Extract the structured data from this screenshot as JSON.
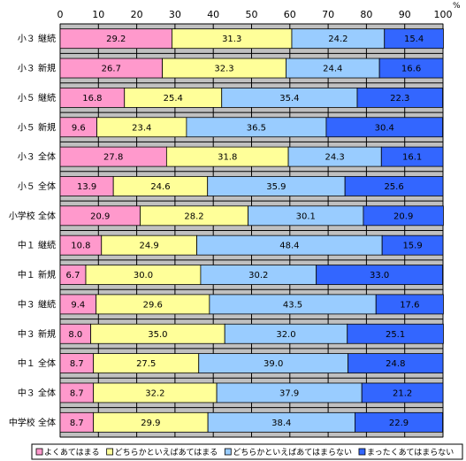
{
  "chart_data": {
    "type": "bar",
    "orientation": "horizontal",
    "stacked": true,
    "percent_symbol": "%",
    "xlim": [
      0,
      100
    ],
    "x_ticks": [
      0,
      10,
      20,
      30,
      40,
      50,
      60,
      70,
      80,
      90,
      100
    ],
    "grid": true,
    "legend_position": "bottom",
    "background_color": "#C0C0C0",
    "categories": [
      "小３ 継続",
      "小３ 新規",
      "小５ 継続",
      "小５ 新規",
      "小３ 全体",
      "小５ 全体",
      "小学校 全体",
      "中１ 継続",
      "中１ 新規",
      "中３ 継続",
      "中３ 新規",
      "中１ 全体",
      "中３ 全体",
      "中学校 全体"
    ],
    "series": [
      {
        "name": "よくあてはまる",
        "color": "#FF99CC",
        "values": [
          29.2,
          26.7,
          16.8,
          9.6,
          27.8,
          13.9,
          20.9,
          10.8,
          6.7,
          9.4,
          8.0,
          8.7,
          8.7,
          8.7
        ]
      },
      {
        "name": "どちらかといえばあてはまる",
        "color": "#FFFF99",
        "values": [
          31.3,
          32.3,
          25.4,
          23.4,
          31.8,
          24.6,
          28.2,
          24.9,
          30.0,
          29.6,
          35.0,
          27.5,
          32.2,
          29.9
        ]
      },
      {
        "name": "どちらかといえばあてはまらない",
        "color": "#99CCFF",
        "values": [
          24.2,
          24.4,
          35.4,
          36.5,
          24.3,
          35.9,
          30.1,
          48.4,
          30.2,
          43.5,
          32.0,
          39.0,
          37.9,
          38.4
        ]
      },
      {
        "name": "まったくあてはまらない",
        "color": "#3366FF",
        "values": [
          15.4,
          16.6,
          22.3,
          30.4,
          16.1,
          25.6,
          20.9,
          15.9,
          33.0,
          17.6,
          25.1,
          24.8,
          21.2,
          22.9
        ]
      }
    ]
  }
}
